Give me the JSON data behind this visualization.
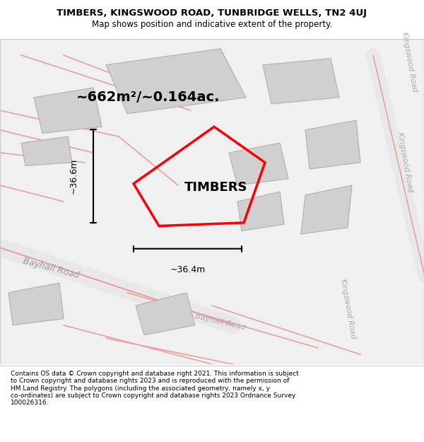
{
  "title_line1": "TIMBERS, KINGSWOOD ROAD, TUNBRIDGE WELLS, TN2 4UJ",
  "title_line2": "Map shows position and indicative extent of the property.",
  "property_name": "TIMBERS",
  "area_text": "~662m²/~0.164ac.",
  "dim_vertical": "~36.6m",
  "dim_horizontal": "~36.4m",
  "footer_wrapped": "Contains OS data © Crown copyright and database right 2021. This information is subject\nto Crown copyright and database rights 2023 and is reproduced with the permission of\nHM Land Registry. The polygons (including the associated geometry, namely x, y\nco-ordinates) are subject to Crown copyright and database rights 2023 Ordnance Survey\n100026316.",
  "map_bg": "#ffffff",
  "footer_bg": "#ffffff",
  "road_color": "#e8a0a0",
  "building_color": "#d0d0d0",
  "building_stroke": "#b0b0b0"
}
